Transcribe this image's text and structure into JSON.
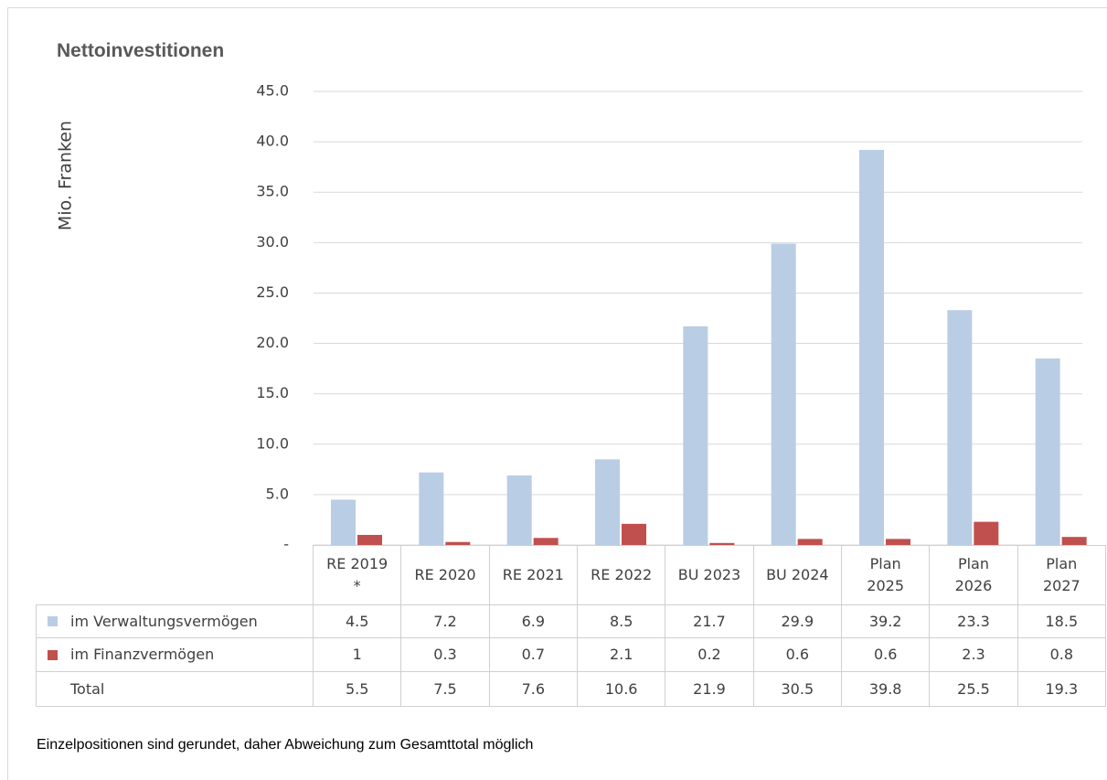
{
  "chart_data": {
    "type": "bar",
    "title": "Nettoinvestitionen",
    "y_label": "Mio. Franken",
    "categories": [
      "RE 2019\n*",
      "RE 2020",
      "RE 2021",
      "RE 2022",
      "BU 2023",
      "BU 2024",
      "Plan\n2025",
      "Plan\n2026",
      "Plan\n2027"
    ],
    "series": [
      {
        "name": "im Verwaltungsvermögen",
        "color": "#b9cde5",
        "values": [
          4.5,
          7.2,
          6.9,
          8.5,
          21.7,
          29.9,
          39.2,
          23.3,
          18.5
        ]
      },
      {
        "name": "im Finanzvermögen",
        "color": "#c0504d",
        "values": [
          1.0,
          0.3,
          0.7,
          2.1,
          0.2,
          0.6,
          0.6,
          2.3,
          0.8
        ]
      }
    ],
    "total": {
      "name": "Total",
      "values": [
        5.5,
        7.5,
        7.6,
        10.6,
        21.9,
        30.5,
        39.8,
        25.5,
        19.3
      ]
    },
    "ylim": [
      0,
      45
    ],
    "yticks": [
      {
        "value": 0,
        "label": "-"
      },
      {
        "value": 5,
        "label": "5.0"
      },
      {
        "value": 10,
        "label": "10.0"
      },
      {
        "value": 15,
        "label": "15.0"
      },
      {
        "value": 20,
        "label": "20.0"
      },
      {
        "value": 25,
        "label": "25.0"
      },
      {
        "value": 30,
        "label": "30.0"
      },
      {
        "value": 35,
        "label": "35.0"
      },
      {
        "value": 40,
        "label": "40.0"
      },
      {
        "value": 45,
        "label": "45.0"
      }
    ],
    "grid": true,
    "note": "Einzelpositionen sind gerundet, daher Abweichung zum Gesamttotal möglich"
  }
}
